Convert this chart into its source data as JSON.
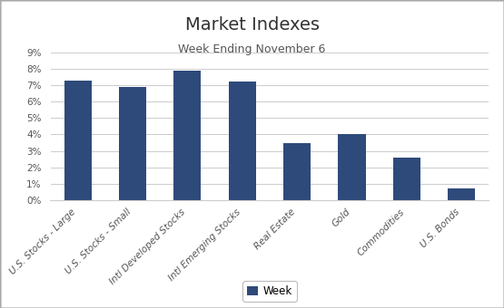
{
  "title": "Market Indexes",
  "subtitle": "Week Ending November 6",
  "categories": [
    "U.S. Stocks - Large",
    "U.S. Stocks - Small",
    "Intl Developed Stocks",
    "Intl Emerging Stocks",
    "Real Estate",
    "Gold",
    "Commodities",
    "U.S. Bonds"
  ],
  "values": [
    0.073,
    0.069,
    0.079,
    0.072,
    0.035,
    0.04,
    0.026,
    0.007
  ],
  "bar_color": "#2E4A7A",
  "background_color": "#FFFFFF",
  "ylim": [
    0,
    0.09
  ],
  "yticks": [
    0,
    0.01,
    0.02,
    0.03,
    0.04,
    0.05,
    0.06,
    0.07,
    0.08,
    0.09
  ],
  "legend_label": "Week",
  "title_fontsize": 14,
  "subtitle_fontsize": 9,
  "tick_label_fontsize": 7.5
}
